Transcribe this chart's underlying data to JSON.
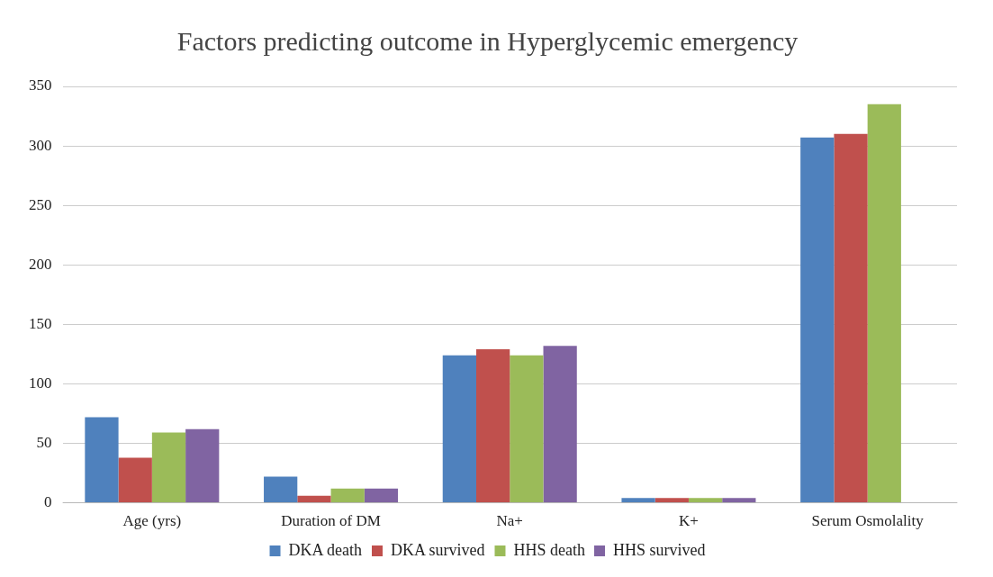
{
  "chart_data": {
    "type": "bar",
    "title": "Factors predicting outcome in Hyperglycemic emergency",
    "categories": [
      "Age (yrs)",
      "Duration of DM",
      "Na+",
      "K+",
      "Serum Osmolality"
    ],
    "series": [
      {
        "name": "DKA death",
        "color": "#4f81bd",
        "values": [
          72,
          22,
          124,
          4,
          307
        ]
      },
      {
        "name": "DKA survived",
        "color": "#c0504d",
        "values": [
          38,
          6,
          129,
          4,
          310
        ]
      },
      {
        "name": "HHS death",
        "color": "#9bbb59",
        "values": [
          59,
          12,
          124,
          4,
          335
        ]
      },
      {
        "name": "HHS survived",
        "color": "#8064a2",
        "values": [
          62,
          12,
          132,
          4,
          null
        ]
      }
    ],
    "ylim": [
      0,
      350
    ],
    "yticks": [
      0,
      50,
      100,
      150,
      200,
      250,
      300,
      350
    ],
    "grid": "y",
    "legend": "bottom"
  }
}
